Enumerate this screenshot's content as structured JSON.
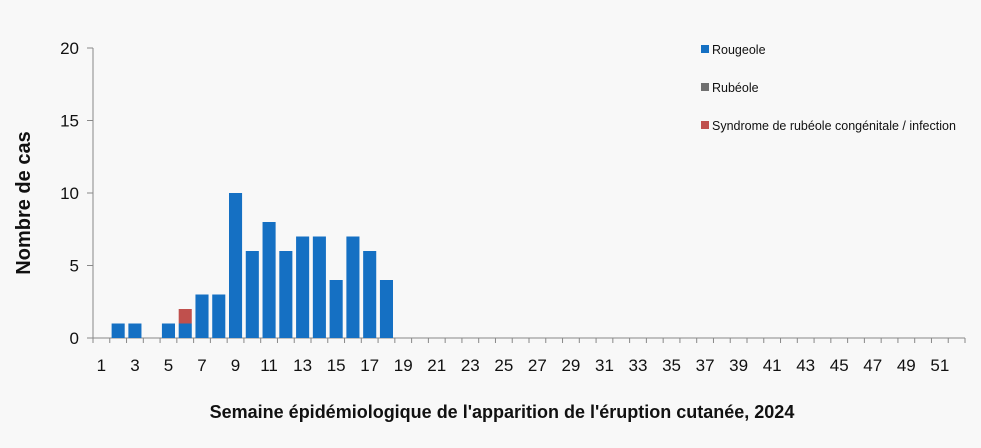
{
  "chart_data": {
    "type": "bar",
    "stacked": true,
    "xlabel": "Semaine épidémiologique de l'apparition de l'éruption cutanée, 2024",
    "ylabel": "Nombre de cas",
    "ylim": [
      0,
      20
    ],
    "yticks": [
      "0",
      "5",
      "10",
      "15",
      "20"
    ],
    "xlim": [
      1,
      52
    ],
    "xticks": [
      "1",
      "3",
      "5",
      "7",
      "9",
      "11",
      "13",
      "15",
      "17",
      "19",
      "21",
      "23",
      "25",
      "27",
      "29",
      "31",
      "33",
      "35",
      "37",
      "39",
      "41",
      "43",
      "45",
      "47",
      "49",
      "51"
    ],
    "grid": false,
    "legend_position": "top-right",
    "categories": [
      1,
      2,
      3,
      4,
      5,
      6,
      7,
      8,
      9,
      10,
      11,
      12,
      13,
      14,
      15,
      16,
      17,
      18,
      19,
      20,
      21,
      22,
      23,
      24,
      25,
      26,
      27,
      28,
      29,
      30,
      31,
      32,
      33,
      34,
      35,
      36,
      37,
      38,
      39,
      40,
      41,
      42,
      43,
      44,
      45,
      46,
      47,
      48,
      49,
      50,
      51,
      52
    ],
    "series": [
      {
        "name": "Rougeole",
        "color": "#1570c3",
        "values": [
          0,
          1,
          1,
          0,
          1,
          1,
          3,
          3,
          10,
          6,
          8,
          6,
          7,
          7,
          4,
          7,
          6,
          4,
          0,
          0,
          0,
          0,
          0,
          0,
          0,
          0,
          0,
          0,
          0,
          0,
          0,
          0,
          0,
          0,
          0,
          0,
          0,
          0,
          0,
          0,
          0,
          0,
          0,
          0,
          0,
          0,
          0,
          0,
          0,
          0,
          0,
          0
        ]
      },
      {
        "name": "Rubéole",
        "color": "#707070",
        "values": [
          0,
          0,
          0,
          0,
          0,
          0,
          0,
          0,
          0,
          0,
          0,
          0,
          0,
          0,
          0,
          0,
          0,
          0,
          0,
          0,
          0,
          0,
          0,
          0,
          0,
          0,
          0,
          0,
          0,
          0,
          0,
          0,
          0,
          0,
          0,
          0,
          0,
          0,
          0,
          0,
          0,
          0,
          0,
          0,
          0,
          0,
          0,
          0,
          0,
          0,
          0,
          0
        ]
      },
      {
        "name": "Syndrome de rubéole congénitale / infection",
        "color": "#c0504d",
        "values": [
          0,
          0,
          0,
          0,
          0,
          1,
          0,
          0,
          0,
          0,
          0,
          0,
          0,
          0,
          0,
          0,
          0,
          0,
          0,
          0,
          0,
          0,
          0,
          0,
          0,
          0,
          0,
          0,
          0,
          0,
          0,
          0,
          0,
          0,
          0,
          0,
          0,
          0,
          0,
          0,
          0,
          0,
          0,
          0,
          0,
          0,
          0,
          0,
          0,
          0,
          0,
          0
        ]
      }
    ]
  }
}
